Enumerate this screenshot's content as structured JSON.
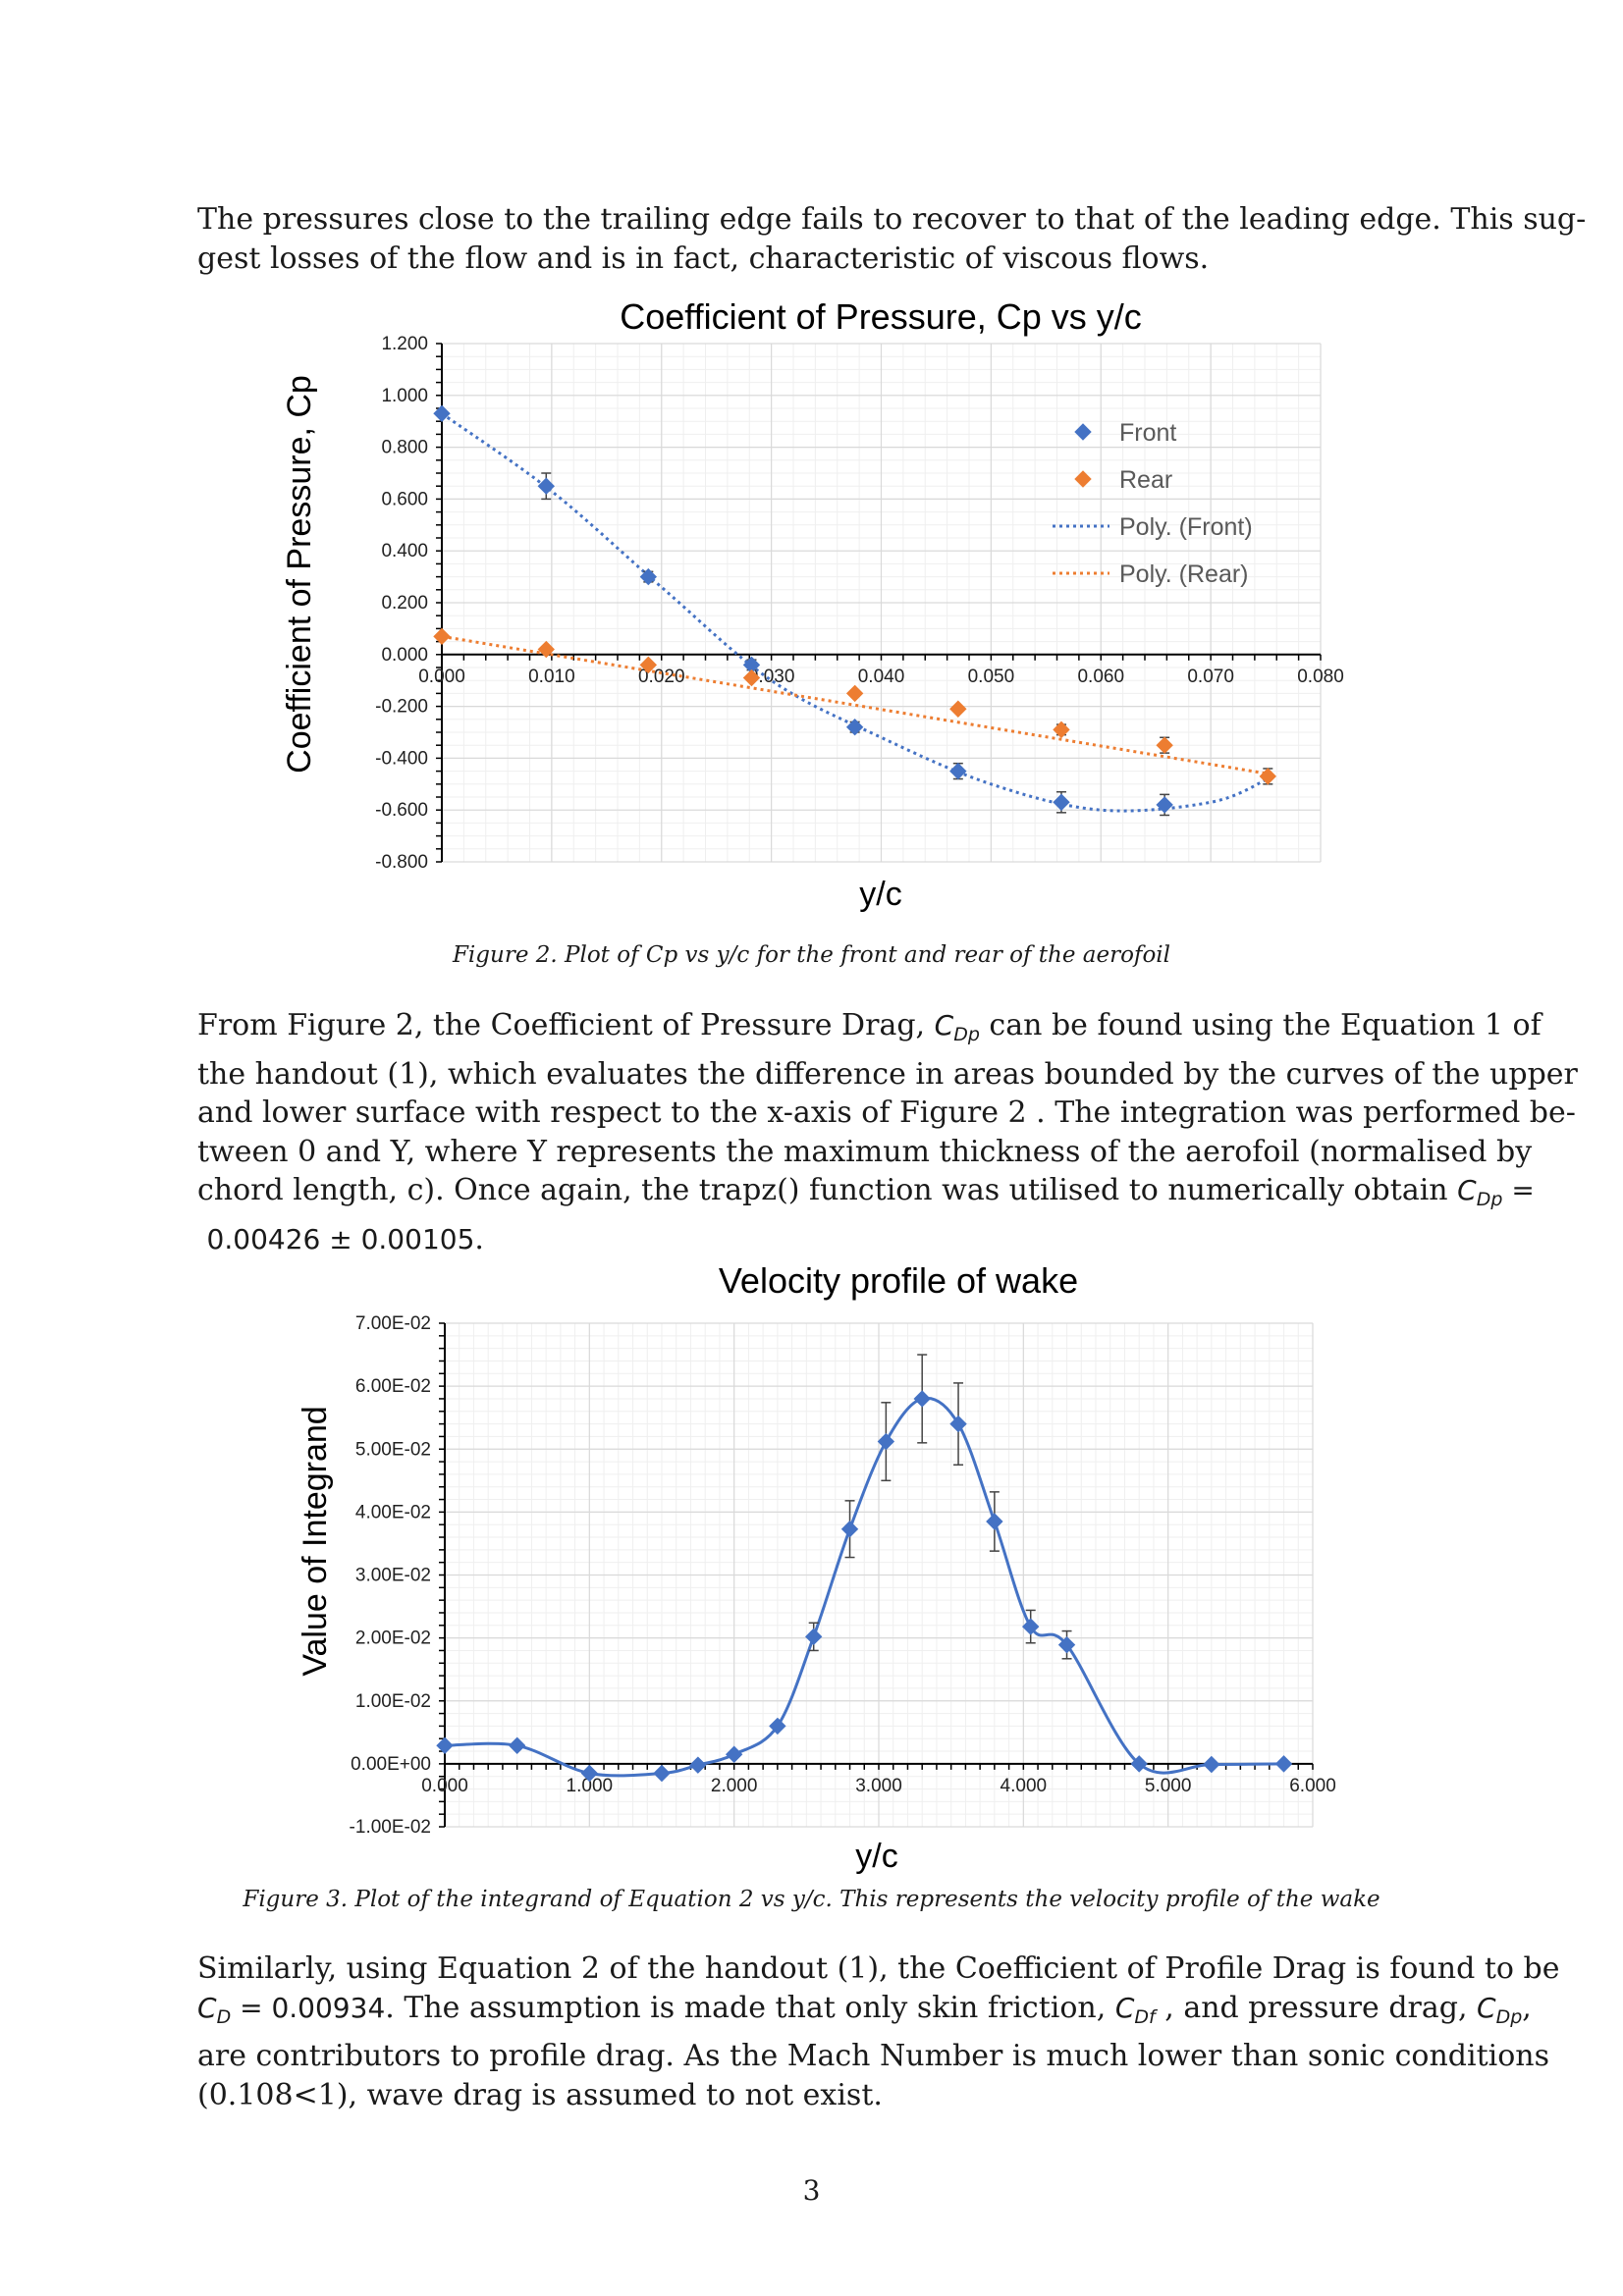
{
  "paragraphs": {
    "p1": [
      "The pressures close to the trailing edge fails to recover to that of the leading edge. This sug-",
      "gest losses of the flow and is in fact, characteristic of viscous flows."
    ],
    "p2": {
      "l1a": "From Figure 2, the Coefficient of Pressure Drag, ",
      "l1_sym": "C",
      "l1_sub": "Dp",
      "l1b": " can be found using the Equation 1 of",
      "l2": "the handout (1), which evaluates the difference in areas bounded by the curves of the upper",
      "l3": "and lower surface with respect to the x-axis of Figure 2 . The integration was performed be-",
      "l4": "tween 0 and Y, where Y represents the maximum thickness of the aerofoil (normalised by",
      "l5a": "chord length, c). Once again, the trapz() function was utilised to numerically obtain ",
      "l5_sym": "C",
      "l5_sub": "Dp",
      "l5_eq": " =",
      "l6_val": "0.00426 ± 0.00105",
      "l6_end": "."
    },
    "p3": {
      "l1": "Similarly, using Equation 2 of the handout (1), the Coefficient of Profile Drag is found to be",
      "l2_sym": "C",
      "l2_sub": "D",
      "l2_val": " = 0.00934",
      "l2b": ". The assumption is made that only skin friction, ",
      "l2_sym2": "C",
      "l2_sub2": "Df",
      "l2c": " , and pressure drag, ",
      "l2_sym3": "C",
      "l2_sub3": "Dp",
      "l2d": ",",
      "l3": "are contributors to profile drag. As the Mach Number is much lower than sonic conditions",
      "l4": "(0.108<1), wave drag is assumed to not exist."
    }
  },
  "captions": {
    "fig2": "Figure 2. Plot of Cp vs y/c for the front and rear of the aerofoil",
    "fig3": "Figure 3. Plot of the integrand of Equation 2 vs y/c. This represents the velocity profile of the wake"
  },
  "page_number": "3",
  "colors": {
    "front": "#4472c4",
    "rear": "#ed7d31",
    "grid": "#d9d9d9",
    "text": "#1a1a1a"
  },
  "chart_data": [
    {
      "type": "scatter",
      "title": "Coefficient of Pressure, Cp vs y/c",
      "xlabel": "y/c",
      "ylabel": "Coefficient of Pressure, Cp",
      "xlim": [
        0,
        0.08
      ],
      "ylim": [
        -0.8,
        1.2
      ],
      "x_ticks": [
        "0.000",
        "0.010",
        "0.020",
        "0.030",
        "0.040",
        "0.050",
        "0.060",
        "0.070",
        "0.080"
      ],
      "y_ticks": [
        "-0.800",
        "-0.600",
        "-0.400",
        "-0.200",
        "0.000",
        "0.200",
        "0.400",
        "0.600",
        "0.800",
        "1.000",
        "1.200"
      ],
      "grid": true,
      "legend_position": "upper-right",
      "series": [
        {
          "name": "Front",
          "x": [
            0.0,
            0.0095,
            0.0188,
            0.0282,
            0.0376,
            0.047,
            0.0564,
            0.0658
          ],
          "y": [
            0.93,
            0.65,
            0.3,
            -0.04,
            -0.28,
            -0.45,
            -0.57,
            -0.58
          ],
          "err": [
            0.0,
            0.05,
            0.02,
            0.02,
            0.02,
            0.03,
            0.04,
            0.04
          ]
        },
        {
          "name": "Rear",
          "x": [
            0.0,
            0.0095,
            0.0188,
            0.0282,
            0.0376,
            0.047,
            0.0564,
            0.0658,
            0.0752
          ],
          "y": [
            0.07,
            0.02,
            -0.04,
            -0.09,
            -0.15,
            -0.21,
            -0.29,
            -0.35,
            -0.47
          ],
          "err": [
            0.0,
            0.01,
            0.01,
            0.01,
            0.01,
            0.01,
            0.02,
            0.03,
            0.03
          ]
        },
        {
          "name": "Poly. (Front)",
          "x": [
            0.0,
            0.01,
            0.02,
            0.03,
            0.04,
            0.05,
            0.06,
            0.07,
            0.0752
          ],
          "y": [
            0.93,
            0.63,
            0.26,
            -0.1,
            -0.32,
            -0.5,
            -0.6,
            -0.57,
            -0.48
          ]
        },
        {
          "name": "Poly. (Rear)",
          "x": [
            0.0,
            0.0752
          ],
          "y": [
            0.07,
            -0.46
          ]
        }
      ]
    },
    {
      "type": "line",
      "title": "Velocity profile of wake",
      "xlabel": "y/c",
      "ylabel": "Value of Integrand",
      "xlim": [
        0,
        6
      ],
      "ylim": [
        -0.01,
        0.07
      ],
      "x_ticks": [
        "0.000",
        "1.000",
        "2.000",
        "3.000",
        "4.000",
        "5.000",
        "6.000"
      ],
      "y_ticks": [
        "-1.00E-02",
        "0.00E+00",
        "1.00E-02",
        "2.00E-02",
        "3.00E-02",
        "4.00E-02",
        "5.00E-02",
        "6.00E-02",
        "7.00E-02"
      ],
      "grid": true,
      "series": [
        {
          "x": [
            0.0,
            0.5,
            1.0,
            1.5,
            1.75,
            2.0,
            2.3,
            2.55,
            2.8,
            3.05,
            3.3,
            3.55,
            3.8,
            4.05,
            4.3,
            4.8,
            5.3,
            5.8
          ],
          "y": [
            0.0029,
            0.0029,
            -0.0015,
            -0.0015,
            -0.0002,
            0.0015,
            0.006,
            0.0202,
            0.0373,
            0.0512,
            0.058,
            0.054,
            0.0385,
            0.0218,
            0.0189,
            0.0,
            -0.0001,
            0.0
          ],
          "err": [
            0,
            0,
            0,
            0,
            0,
            0,
            0.0004,
            0.0022,
            0.0045,
            0.0062,
            0.007,
            0.0065,
            0.0047,
            0.0026,
            0.0022,
            0,
            0,
            0
          ]
        }
      ]
    }
  ]
}
